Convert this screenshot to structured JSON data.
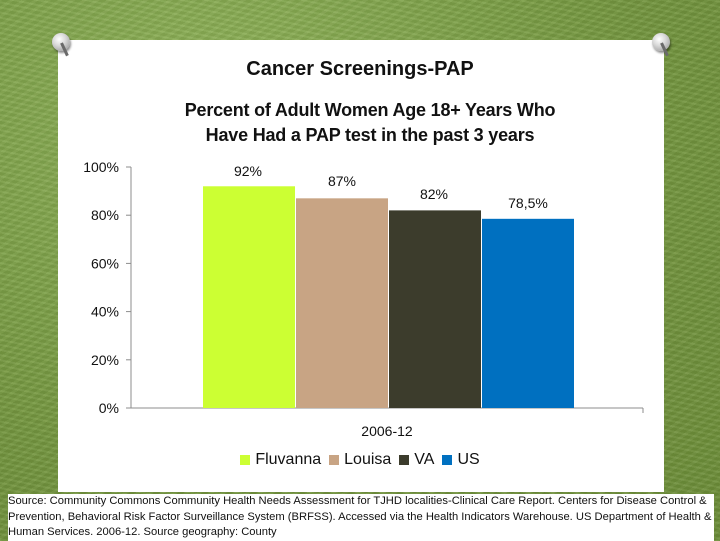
{
  "slide": {
    "title": "Cancer Screenings-PAP"
  },
  "chart_data": {
    "type": "bar",
    "title_line1": "Percent of Adult Women Age 18+ Years Who",
    "title_line2": "Have Had a PAP test in the past 3 years",
    "categories": [
      "2006-12"
    ],
    "series": [
      {
        "name": "Fluvanna",
        "values": [
          92
        ],
        "label": "92%",
        "color": "#ccff33"
      },
      {
        "name": "Louisa",
        "values": [
          87
        ],
        "label": "87%",
        "color": "#c8a484"
      },
      {
        "name": "VA",
        "values": [
          82
        ],
        "label": "82%",
        "color": "#3c3c2c"
      },
      {
        "name": "US",
        "values": [
          78.5
        ],
        "label": "78,5%",
        "color": "#0070c0"
      }
    ],
    "yticks": [
      "0%",
      "20%",
      "40%",
      "60%",
      "80%",
      "100%"
    ],
    "ylim": [
      0,
      100
    ],
    "xlabel": "",
    "ylabel": "",
    "legend": "bottom",
    "grid": false
  },
  "source_text": "Source: Community Commons Community Health Needs Assessment for TJHD localities-Clinical Care Report. Centers for Disease Control & Prevention, Behavioral Risk Factor Surveillance System (BRFSS). Accessed via the Health Indicators Warehouse. US Department of Health & Human Services. 2006-12. Source geography: County"
}
